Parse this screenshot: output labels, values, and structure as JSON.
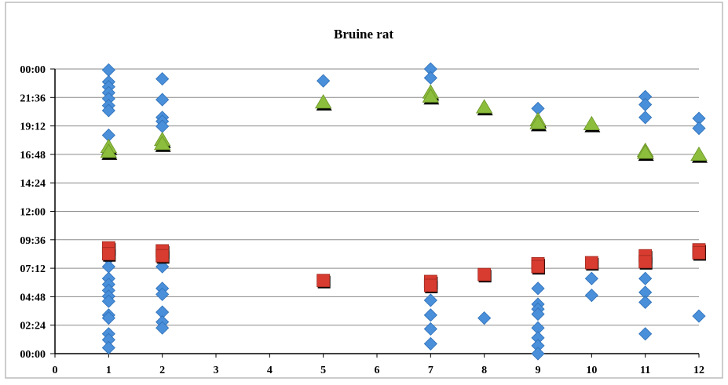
{
  "chart_data": {
    "type": "scatter",
    "title": "Bruine rat",
    "xlabel": "",
    "ylabel": "",
    "xlim": [
      0,
      12
    ],
    "ylim": [
      0,
      1440
    ],
    "x_ticks": [
      0,
      1,
      2,
      3,
      4,
      5,
      6,
      7,
      8,
      9,
      10,
      11,
      12
    ],
    "y_ticks": [
      {
        "value": 0,
        "label": "00:00"
      },
      {
        "value": 144,
        "label": "02:24"
      },
      {
        "value": 288,
        "label": "04:48"
      },
      {
        "value": 432,
        "label": "07:12"
      },
      {
        "value": 576,
        "label": "09:36"
      },
      {
        "value": 720,
        "label": "12:00"
      },
      {
        "value": 864,
        "label": "14:24"
      },
      {
        "value": 1008,
        "label": "16:48"
      },
      {
        "value": 1152,
        "label": "19:12"
      },
      {
        "value": 1296,
        "label": "21:36"
      },
      {
        "value": 1440,
        "label": "00:00"
      }
    ],
    "grid": {
      "horizontal": true,
      "vertical": false
    },
    "legend": "none",
    "colors": {
      "diamond": "#4a8fd9",
      "square": "#d83b2f",
      "triangle": "#8cbd3c",
      "shadow": "#000000",
      "grid": "#8a8a8a",
      "frame": "#bbbbbb"
    },
    "series": [
      {
        "marker": "diamond",
        "color": "#4a8fd9",
        "points": [
          [
            1,
            1435
          ],
          [
            1,
            1375
          ],
          [
            1,
            1350
          ],
          [
            1,
            1320
          ],
          [
            1,
            1290
          ],
          [
            1,
            1255
          ],
          [
            1,
            1230
          ],
          [
            1,
            1105
          ],
          [
            1,
            480
          ],
          [
            1,
            440
          ],
          [
            1,
            380
          ],
          [
            1,
            350
          ],
          [
            1,
            320
          ],
          [
            1,
            290
          ],
          [
            1,
            265
          ],
          [
            1,
            195
          ],
          [
            1,
            180
          ],
          [
            1,
            100
          ],
          [
            1,
            70
          ],
          [
            1,
            30
          ],
          [
            2,
            1390
          ],
          [
            2,
            1285
          ],
          [
            2,
            1195
          ],
          [
            2,
            1175
          ],
          [
            2,
            1150
          ],
          [
            2,
            440
          ],
          [
            2,
            330
          ],
          [
            2,
            300
          ],
          [
            2,
            210
          ],
          [
            2,
            160
          ],
          [
            2,
            130
          ],
          [
            5,
            1380
          ],
          [
            7,
            1440
          ],
          [
            7,
            1395
          ],
          [
            7,
            270
          ],
          [
            7,
            195
          ],
          [
            7,
            125
          ],
          [
            7,
            50
          ],
          [
            8,
            180
          ],
          [
            9,
            1240
          ],
          [
            9,
            330
          ],
          [
            9,
            250
          ],
          [
            9,
            225
          ],
          [
            9,
            200
          ],
          [
            9,
            130
          ],
          [
            9,
            80
          ],
          [
            9,
            40
          ],
          [
            9,
            0
          ],
          [
            10,
            380
          ],
          [
            10,
            295
          ],
          [
            11,
            1300
          ],
          [
            11,
            1260
          ],
          [
            11,
            1195
          ],
          [
            11,
            380
          ],
          [
            11,
            310
          ],
          [
            11,
            260
          ],
          [
            11,
            100
          ],
          [
            12,
            1190
          ],
          [
            12,
            1140
          ],
          [
            12,
            190
          ]
        ]
      },
      {
        "marker": "square",
        "color": "#d83b2f",
        "points": [
          [
            1,
            535
          ],
          [
            1,
            505
          ],
          [
            2,
            520
          ],
          [
            2,
            495
          ],
          [
            5,
            370
          ],
          [
            7,
            365
          ],
          [
            7,
            345
          ],
          [
            8,
            400
          ],
          [
            9,
            455
          ],
          [
            9,
            440
          ],
          [
            10,
            460
          ],
          [
            11,
            495
          ],
          [
            11,
            465
          ],
          [
            12,
            525
          ],
          [
            12,
            510
          ]
        ]
      },
      {
        "marker": "triangle",
        "color": "#8cbd3c",
        "points": [
          [
            1,
            1045
          ],
          [
            1,
            1020
          ],
          [
            2,
            1080
          ],
          [
            2,
            1060
          ],
          [
            5,
            1270
          ],
          [
            7,
            1320
          ],
          [
            7,
            1300
          ],
          [
            8,
            1245
          ],
          [
            9,
            1180
          ],
          [
            9,
            1165
          ],
          [
            10,
            1160
          ],
          [
            11,
            1025
          ],
          [
            11,
            1015
          ],
          [
            12,
            1005
          ]
        ]
      }
    ]
  }
}
